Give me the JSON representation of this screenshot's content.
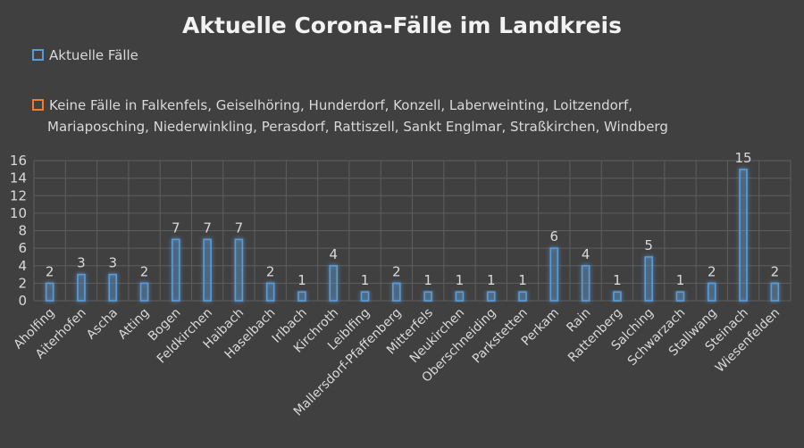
{
  "chart_data": {
    "type": "bar",
    "title": "Aktuelle Corona-Fälle im Landkreis",
    "categories": [
      "Aholfing",
      "Aiterhofen",
      "Ascha",
      "Atting",
      "Bogen",
      "Feldkirchen",
      "Haibach",
      "Haselbach",
      "Irlbach",
      "Kirchroth",
      "Leiblfing",
      "Mallersdorf-Pfaffenberg",
      "Mitterfels",
      "Neukirchen",
      "Oberschneiding",
      "Parkstetten",
      "Perkam",
      "Rain",
      "Rattenberg",
      "Salching",
      "Schwarzach",
      "Stallwang",
      "Steinach",
      "Wiesenfelden"
    ],
    "series": [
      {
        "name": "Aktuelle Fälle",
        "values": [
          2,
          3,
          3,
          2,
          7,
          7,
          7,
          2,
          1,
          4,
          1,
          2,
          1,
          1,
          1,
          1,
          6,
          4,
          1,
          5,
          1,
          2,
          15,
          2
        ],
        "color": "#5b9bd5"
      }
    ],
    "legend_note": {
      "line1": "Keine Fälle in Falkenfels, Geiselhöring, Hunderdorf, Konzell, Laberweinting, Loitzendorf,",
      "line2": "Mariaposching, Niederwinkling, Perasdorf, Rattiszell, Sankt Englmar, Straßkirchen, Windberg",
      "color": "#ed7d31"
    },
    "yticks": [
      0,
      2,
      4,
      6,
      8,
      10,
      12,
      14,
      16
    ],
    "ylim": [
      0,
      16
    ],
    "grid": true,
    "legend_position": "top-left"
  }
}
